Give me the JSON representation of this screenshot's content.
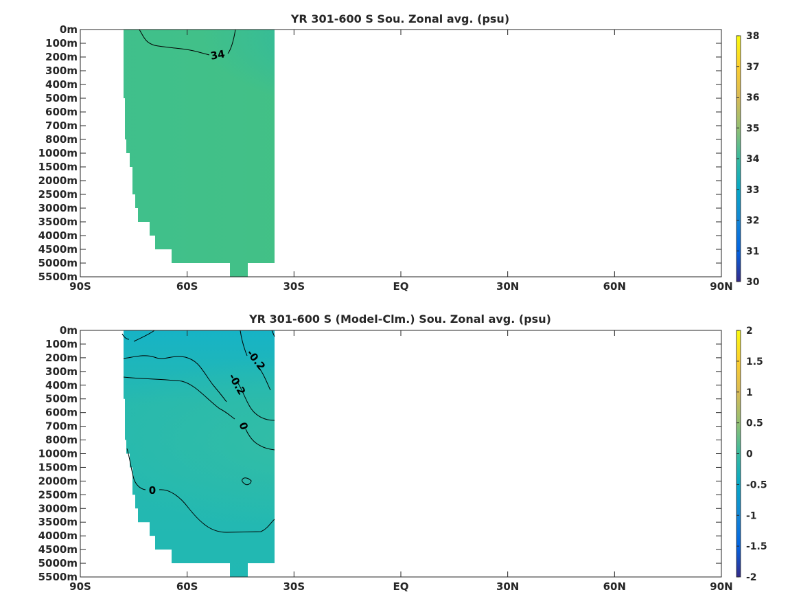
{
  "chart_data": [
    {
      "type": "heatmap",
      "title": "YR 301-600 S Sou. Zonal avg. (psu)",
      "xlabel": "",
      "ylabel": "",
      "x_tick_labels": [
        "90S",
        "60S",
        "30S",
        "EQ",
        "30N",
        "60N",
        "90N"
      ],
      "x_ticks": [
        -90,
        -60,
        -30,
        0,
        30,
        60,
        90
      ],
      "xlim": [
        -90,
        90
      ],
      "y_tick_labels": [
        "0m",
        "100m",
        "200m",
        "300m",
        "400m",
        "500m",
        "600m",
        "700m",
        "800m",
        "1000m",
        "1500m",
        "2000m",
        "2500m",
        "3000m",
        "3500m",
        "4000m",
        "4500m",
        "5000m",
        "5500m"
      ],
      "colorbar": {
        "ticks": [
          "30",
          "31",
          "32",
          "33",
          "34",
          "35",
          "36",
          "37",
          "38"
        ],
        "range": [
          30,
          38
        ],
        "colormap": "parula"
      },
      "data_lat_range": [
        -78,
        -33
      ],
      "contour_labels": [
        "34"
      ],
      "contours": [
        {
          "level": 34,
          "label": "34"
        }
      ]
    },
    {
      "type": "heatmap",
      "title": "YR 301-600 S (Model-Clm.) Sou. Zonal avg. (psu)",
      "xlabel": "",
      "ylabel": "",
      "x_tick_labels": [
        "90S",
        "60S",
        "30S",
        "EQ",
        "30N",
        "60N",
        "90N"
      ],
      "x_ticks": [
        -90,
        -60,
        -30,
        0,
        30,
        60,
        90
      ],
      "xlim": [
        -90,
        90
      ],
      "y_tick_labels": [
        "0m",
        "100m",
        "200m",
        "300m",
        "400m",
        "500m",
        "600m",
        "700m",
        "800m",
        "1000m",
        "1500m",
        "2000m",
        "2500m",
        "3000m",
        "3500m",
        "4000m",
        "4500m",
        "5000m",
        "5500m"
      ],
      "colorbar": {
        "ticks": [
          "2",
          "1.5",
          "1",
          "0.5",
          "0",
          "-0.5",
          "-1",
          "-1.5",
          "-2"
        ],
        "range": [
          -2,
          2
        ],
        "colormap": "parula"
      },
      "data_lat_range": [
        -78,
        -33
      ],
      "contour_labels": [
        "-0.2",
        "-0.2",
        "0",
        "0"
      ],
      "contours": [
        {
          "level": -0.2,
          "label": "-0.2"
        },
        {
          "level": 0,
          "label": "0"
        }
      ]
    }
  ]
}
